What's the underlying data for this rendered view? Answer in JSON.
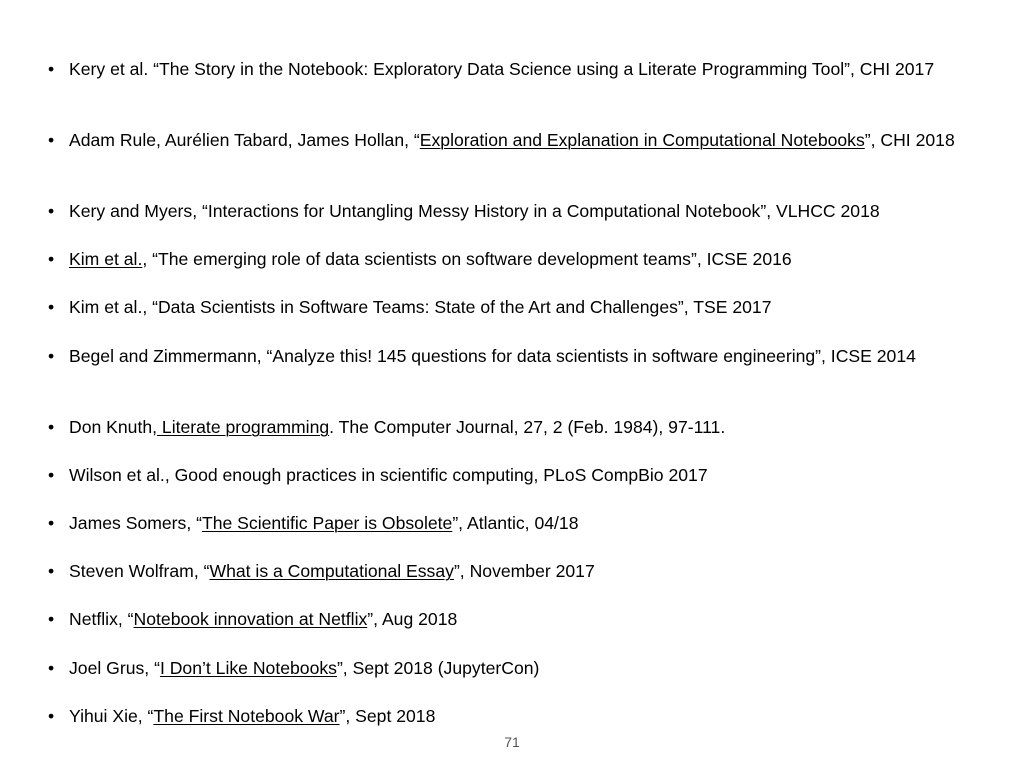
{
  "references": [
    {
      "parts": [
        {
          "t": "Kery et al. “The Story in the Notebook: Exploratory Data Science using a Literate Programming Tool”, CHI 2017"
        }
      ]
    },
    {
      "parts": [
        {
          "t": "Adam Rule, Aurélien Tabard, James Hollan, “"
        },
        {
          "t": "Exploration and Explanation in Computational Notebooks",
          "link": true
        },
        {
          "t": "”, CHI 2018"
        }
      ]
    },
    {
      "parts": [
        {
          "t": "Kery and Myers, “Interactions for Untangling Messy History in a Computational Notebook”, VLHCC 2018"
        }
      ]
    },
    {
      "parts": [
        {
          "t": "Kim et al.",
          "link": true
        },
        {
          "t": ", “The emerging role of data scientists on software development teams”, ICSE 2016"
        }
      ]
    },
    {
      "parts": [
        {
          "t": "Kim et al., “Data Scientists in Software Teams: State of the Art and Challenges”, TSE 2017"
        }
      ]
    },
    {
      "parts": [
        {
          "t": "Begel and Zimmermann, “Analyze this! 145 questions for data scientists in software engineering”, ICSE 2014"
        }
      ]
    },
    {
      "parts": [
        {
          "t": "Don Knuth,"
        },
        {
          "t": " Literate programming",
          "link": true
        },
        {
          "t": ". The Computer Journal, 27, 2 (Feb. 1984), 97-111."
        }
      ]
    },
    {
      "parts": [
        {
          "t": "Wilson et al., Good enough practices in scientific computing, PLoS CompBio 2017"
        }
      ]
    },
    {
      "parts": [
        {
          "t": "James Somers, “"
        },
        {
          "t": "The Scientific Paper is Obsolete",
          "link": true
        },
        {
          "t": "”, Atlantic, 04/18"
        }
      ]
    },
    {
      "parts": [
        {
          "t": "Steven Wolfram, “"
        },
        {
          "t": "What is a Computational Essay",
          "link": true
        },
        {
          "t": "”, November 2017"
        }
      ]
    },
    {
      "parts": [
        {
          "t": "Netflix, “"
        },
        {
          "t": "Notebook innovation at Netflix",
          "link": true
        },
        {
          "t": "”, Aug 2018"
        }
      ]
    },
    {
      "parts": [
        {
          "t": "Joel Grus, “"
        },
        {
          "t": "I Don’t Like Notebooks",
          "link": true
        },
        {
          "t": "”, Sept 2018 (JupyterCon)"
        }
      ]
    },
    {
      "parts": [
        {
          "t": "Yihui Xie, “"
        },
        {
          "t": "The First Notebook War",
          "link": true
        },
        {
          "t": "”, Sept 2018"
        }
      ]
    }
  ],
  "page_number": "71"
}
